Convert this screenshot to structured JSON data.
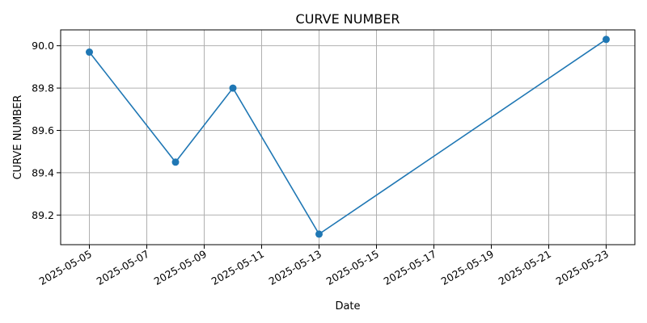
{
  "chart_data": {
    "type": "line",
    "title": "CURVE NUMBER",
    "xlabel": "Date",
    "ylabel": "CURVE NUMBER",
    "x": [
      "2025-05-05",
      "2025-05-08",
      "2025-05-10",
      "2025-05-13",
      "2025-05-23"
    ],
    "series": [
      {
        "values": [
          89.97,
          89.45,
          89.8,
          89.11,
          90.03
        ]
      }
    ],
    "xlim": [
      "2025-05-04",
      "2025-05-24"
    ],
    "ylim": [
      89.06,
      90.075
    ],
    "x_ticks": [
      "2025-05-05",
      "2025-05-07",
      "2025-05-09",
      "2025-05-11",
      "2025-05-13",
      "2025-05-15",
      "2025-05-17",
      "2025-05-19",
      "2025-05-21",
      "2025-05-23"
    ],
    "y_ticks": [
      "89.2",
      "89.4",
      "89.6",
      "89.8",
      "90.0"
    ],
    "grid": true,
    "line_color": "#1f77b4",
    "grid_color": "#b0b0b0",
    "marker": "circle"
  }
}
